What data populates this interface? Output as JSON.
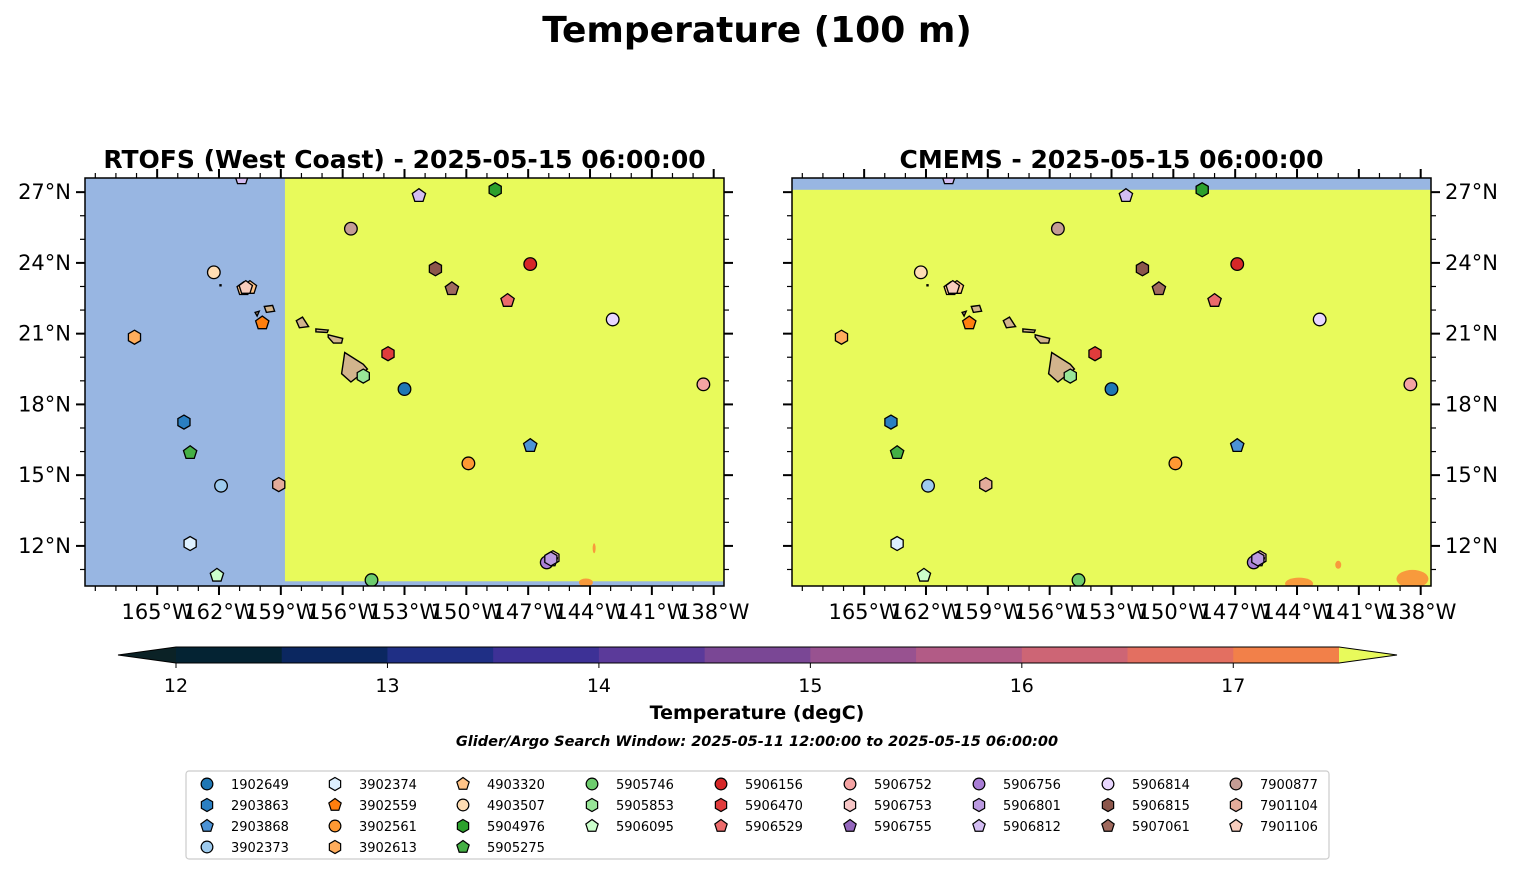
{
  "figure": {
    "suptitle": "Temperature (100 m)",
    "search_window": "Glider/Argo Search Window: 2025-05-11 12:00:00 to 2025-05-15 06:00:00"
  },
  "chart_data": [
    {
      "type": "heatmap",
      "title": "RTOFS (West Coast) - 2025-05-15 06:00:00",
      "xlim": [
        -168.5,
        -137.5
      ],
      "ylim": [
        10.3,
        27.6
      ],
      "x_ticks": [
        -165,
        -162,
        -159,
        -156,
        -153,
        -150,
        -147,
        -144,
        -141,
        -138
      ],
      "x_tick_labels": [
        "165°W",
        "162°W",
        "159°W",
        "156°W",
        "153°W",
        "150°W",
        "147°W",
        "144°W",
        "141°W",
        "138°W"
      ],
      "y_ticks": [
        12,
        15,
        18,
        21,
        24,
        27
      ],
      "y_tick_labels": [
        "12°N",
        "15°N",
        "18°N",
        "21°N",
        "24°N",
        "27°N"
      ],
      "y_tick_side": "left",
      "field_note_regions": [
        {
          "kind": "no-data",
          "lon": [
            -168.5,
            -158.8
          ],
          "lat": [
            10.3,
            27.6
          ]
        },
        {
          "kind": "warm",
          "lon": [
            -158.8,
            -137.5
          ],
          "lat": [
            10.5,
            27.6
          ],
          "value": 17.6
        }
      ]
    },
    {
      "type": "heatmap",
      "title": "CMEMS - 2025-05-15 06:00:00",
      "xlim": [
        -168.5,
        -137.5
      ],
      "ylim": [
        10.3,
        27.6
      ],
      "x_ticks": [
        -165,
        -162,
        -159,
        -156,
        -153,
        -150,
        -147,
        -144,
        -141,
        -138
      ],
      "x_tick_labels": [
        "165°W",
        "162°W",
        "159°W",
        "156°W",
        "153°W",
        "150°W",
        "147°W",
        "144°W",
        "141°W",
        "138°W"
      ],
      "y_ticks": [
        12,
        15,
        18,
        21,
        24,
        27
      ],
      "y_tick_labels": [
        "12°N",
        "15°N",
        "18°N",
        "21°N",
        "24°N",
        "27°N"
      ],
      "y_tick_side": "right",
      "field_note_regions": [
        {
          "kind": "no-data",
          "lon": [
            -168.5,
            -137.5
          ],
          "lat": [
            27.1,
            27.6
          ]
        },
        {
          "kind": "warm",
          "lon": [
            -168.5,
            -137.5
          ],
          "lat": [
            10.3,
            27.1
          ],
          "value": 17.6
        }
      ]
    }
  ],
  "colorbar": {
    "label": "Temperature (degC)",
    "min": 11.75,
    "max": 17.75,
    "ticks": [
      12,
      13,
      14,
      15,
      16,
      17
    ],
    "tick_labels": [
      "12",
      "13",
      "14",
      "15",
      "16",
      "17"
    ],
    "levels": [
      12.0,
      12.5,
      13.0,
      13.5,
      14.0,
      14.5,
      15.0,
      15.5,
      16.0,
      16.5,
      17.0,
      17.5
    ],
    "colors": [
      "#042333",
      "#0b2760",
      "#1f2f85",
      "#3d3196",
      "#5b3a9a",
      "#7a4795",
      "#985290",
      "#b25b86",
      "#cd6575",
      "#e36f61",
      "#f28049",
      "#f89a3c",
      "#f6c446"
    ],
    "under_color": "#0b2226",
    "over_color": "#e8fa5b",
    "no_data_color": "#98b6e2"
  },
  "islands": [
    {
      "name": "Hawaii",
      "pts": [
        [
          -155.9,
          20.2
        ],
        [
          -155.0,
          19.7
        ],
        [
          -154.8,
          19.5
        ],
        [
          -155.6,
          18.95
        ],
        [
          -156.05,
          19.3
        ],
        [
          -155.95,
          19.9
        ]
      ]
    },
    {
      "name": "Maui",
      "pts": [
        [
          -156.7,
          20.95
        ],
        [
          -156.0,
          20.8
        ],
        [
          -156.05,
          20.6
        ],
        [
          -156.45,
          20.6
        ],
        [
          -156.7,
          20.85
        ]
      ]
    },
    {
      "name": "Molokai",
      "pts": [
        [
          -157.3,
          21.2
        ],
        [
          -156.7,
          21.15
        ],
        [
          -156.75,
          21.05
        ],
        [
          -157.3,
          21.08
        ]
      ]
    },
    {
      "name": "Oahu",
      "pts": [
        [
          -158.25,
          21.55
        ],
        [
          -157.95,
          21.7
        ],
        [
          -157.65,
          21.3
        ],
        [
          -158.1,
          21.25
        ]
      ]
    },
    {
      "name": "Kauai",
      "pts": [
        [
          -159.8,
          22.15
        ],
        [
          -159.4,
          22.2
        ],
        [
          -159.3,
          21.95
        ],
        [
          -159.7,
          21.9
        ]
      ]
    },
    {
      "name": "Niihau",
      "pts": [
        [
          -160.25,
          21.9
        ],
        [
          -160.05,
          21.95
        ],
        [
          -160.15,
          21.75
        ]
      ]
    },
    {
      "name": "Nihoa",
      "pts": [
        [
          -161.95,
          23.07
        ],
        [
          -161.9,
          23.07
        ],
        [
          -161.9,
          23.03
        ],
        [
          -161.95,
          23.03
        ]
      ]
    }
  ],
  "floats": [
    {
      "id": "1902649",
      "marker": "circle",
      "color": "#1f77b4",
      "lon": -153.0,
      "lat": 18.65
    },
    {
      "id": "2903863",
      "marker": "hexagon",
      "color": "#2a7fc2",
      "lon": -163.7,
      "lat": 17.25
    },
    {
      "id": "2903868",
      "marker": "pentagon",
      "color": "#4c93d6",
      "lon": -146.9,
      "lat": 16.25
    },
    {
      "id": "3902373",
      "marker": "circle",
      "color": "#9ecbee",
      "lon": -161.9,
      "lat": 14.55
    },
    {
      "id": "3902374",
      "marker": "hexagon",
      "color": "#ddf0ff",
      "lon": -163.4,
      "lat": 12.1
    },
    {
      "id": "3902559",
      "marker": "pentagon",
      "color": "#ff7f0e",
      "lon": -159.9,
      "lat": 21.45
    },
    {
      "id": "3902561",
      "marker": "circle",
      "color": "#ff9933",
      "lon": -149.9,
      "lat": 15.5
    },
    {
      "id": "3902613",
      "marker": "hexagon",
      "color": "#ffad5c",
      "lon": -166.1,
      "lat": 20.85
    },
    {
      "id": "4903320",
      "marker": "pentagon",
      "color": "#ffc488",
      "lon": -160.8,
      "lat": 22.9
    },
    {
      "id": "4903507",
      "marker": "circle",
      "color": "#ffddb3",
      "lon": -162.25,
      "lat": 23.6
    },
    {
      "id": "4903320",
      "marker": "pentagon",
      "color": "#ffc488",
      "lon": -160.5,
      "lat": 22.95
    },
    {
      "id": "5904976",
      "marker": "hexagon",
      "color": "#2ca02c",
      "lon": -148.6,
      "lat": 27.1
    },
    {
      "id": "5905275",
      "marker": "pentagon",
      "color": "#45b045",
      "lon": -163.4,
      "lat": 15.95
    },
    {
      "id": "5905746",
      "marker": "circle",
      "color": "#6dcc6d",
      "lon": -154.6,
      "lat": 10.55
    },
    {
      "id": "5905853",
      "marker": "hexagon",
      "color": "#98e598",
      "lon": -155.0,
      "lat": 19.2
    },
    {
      "id": "5906095",
      "marker": "pentagon",
      "color": "#ccffcc",
      "lon": -162.1,
      "lat": 10.75
    },
    {
      "id": "5906156",
      "marker": "circle",
      "color": "#d62728",
      "lon": -146.9,
      "lat": 23.95
    },
    {
      "id": "5906470",
      "marker": "hexagon",
      "color": "#e03c3c",
      "lon": -153.8,
      "lat": 20.15
    },
    {
      "id": "5906529",
      "marker": "pentagon",
      "color": "#ec6b6b",
      "lon": -148.0,
      "lat": 22.4
    },
    {
      "id": "5906752",
      "marker": "circle",
      "color": "#f4a3a3",
      "lon": -138.5,
      "lat": 18.85
    },
    {
      "id": "5906753",
      "marker": "hexagon",
      "color": "#f7c6c6",
      "lon": -145.8,
      "lat": 11.5
    },
    {
      "id": "5906755",
      "marker": "pentagon",
      "color": "#9467bd",
      "lon": -145.9,
      "lat": 11.4
    },
    {
      "id": "5906756",
      "marker": "circle",
      "color": "#a97ed6",
      "lon": -146.1,
      "lat": 11.3
    },
    {
      "id": "5906801",
      "marker": "hexagon",
      "color": "#bb9ae0",
      "lon": -145.9,
      "lat": 11.45
    },
    {
      "id": "5906812",
      "marker": "pentagon",
      "color": "#d3bdf2",
      "lon": -152.3,
      "lat": 26.85
    },
    {
      "id": "5906814",
      "marker": "circle",
      "color": "#e9d7ff",
      "lon": -142.9,
      "lat": 21.6
    },
    {
      "id": "5906815",
      "marker": "hexagon",
      "color": "#8c564b",
      "lon": -151.5,
      "lat": 23.75
    },
    {
      "id": "5907061",
      "marker": "pentagon",
      "color": "#a06a5e",
      "lon": -150.7,
      "lat": 22.9
    },
    {
      "id": "7900877",
      "marker": "circle",
      "color": "#c49c94",
      "lon": -155.6,
      "lat": 25.45
    },
    {
      "id": "7901104",
      "marker": "hexagon",
      "color": "#e3ab9a",
      "lon": -159.1,
      "lat": 14.6
    },
    {
      "id": "7901106",
      "marker": "pentagon",
      "color": "#f8cdbd",
      "lon": -160.7,
      "lat": 22.95
    },
    {
      "id": "5906812",
      "marker": "pentagon",
      "color": "#d3bdf2",
      "lon": -160.9,
      "lat": 27.6
    }
  ],
  "legend": {
    "columns": [
      [
        {
          "id": "1902649",
          "marker": "circle",
          "color": "#1f77b4"
        },
        {
          "id": "2903863",
          "marker": "hexagon",
          "color": "#2a7fc2"
        },
        {
          "id": "2903868",
          "marker": "pentagon",
          "color": "#4c93d6"
        },
        {
          "id": "3902373",
          "marker": "circle",
          "color": "#9ecbee"
        }
      ],
      [
        {
          "id": "3902374",
          "marker": "hexagon",
          "color": "#ddf0ff"
        },
        {
          "id": "3902559",
          "marker": "pentagon",
          "color": "#ff7f0e"
        },
        {
          "id": "3902561",
          "marker": "circle",
          "color": "#ff9933"
        },
        {
          "id": "3902613",
          "marker": "hexagon",
          "color": "#ffad5c"
        }
      ],
      [
        {
          "id": "4903320",
          "marker": "pentagon",
          "color": "#ffc488"
        },
        {
          "id": "4903507",
          "marker": "circle",
          "color": "#ffddb3"
        },
        {
          "id": "5904976",
          "marker": "hexagon",
          "color": "#2ca02c"
        },
        {
          "id": "5905275",
          "marker": "pentagon",
          "color": "#45b045"
        }
      ],
      [
        {
          "id": "5905746",
          "marker": "circle",
          "color": "#6dcc6d"
        },
        {
          "id": "5905853",
          "marker": "hexagon",
          "color": "#98e598"
        },
        {
          "id": "5906095",
          "marker": "pentagon",
          "color": "#ccffcc"
        }
      ],
      [
        {
          "id": "5906156",
          "marker": "circle",
          "color": "#d62728"
        },
        {
          "id": "5906470",
          "marker": "hexagon",
          "color": "#e03c3c"
        },
        {
          "id": "5906529",
          "marker": "pentagon",
          "color": "#ec6b6b"
        }
      ],
      [
        {
          "id": "5906752",
          "marker": "circle",
          "color": "#f4a3a3"
        },
        {
          "id": "5906753",
          "marker": "hexagon",
          "color": "#f7c6c6"
        },
        {
          "id": "5906755",
          "marker": "pentagon",
          "color": "#9467bd"
        }
      ],
      [
        {
          "id": "5906756",
          "marker": "circle",
          "color": "#a97ed6"
        },
        {
          "id": "5906801",
          "marker": "hexagon",
          "color": "#bb9ae0"
        },
        {
          "id": "5906812",
          "marker": "pentagon",
          "color": "#d3bdf2"
        }
      ],
      [
        {
          "id": "5906814",
          "marker": "circle",
          "color": "#e9d7ff"
        },
        {
          "id": "5906815",
          "marker": "hexagon",
          "color": "#8c564b"
        },
        {
          "id": "5907061",
          "marker": "pentagon",
          "color": "#a06a5e"
        }
      ],
      [
        {
          "id": "7900877",
          "marker": "circle",
          "color": "#c49c94"
        },
        {
          "id": "7901104",
          "marker": "hexagon",
          "color": "#e3ab9a"
        },
        {
          "id": "7901106",
          "marker": "pentagon",
          "color": "#f8cdbd"
        }
      ]
    ]
  }
}
